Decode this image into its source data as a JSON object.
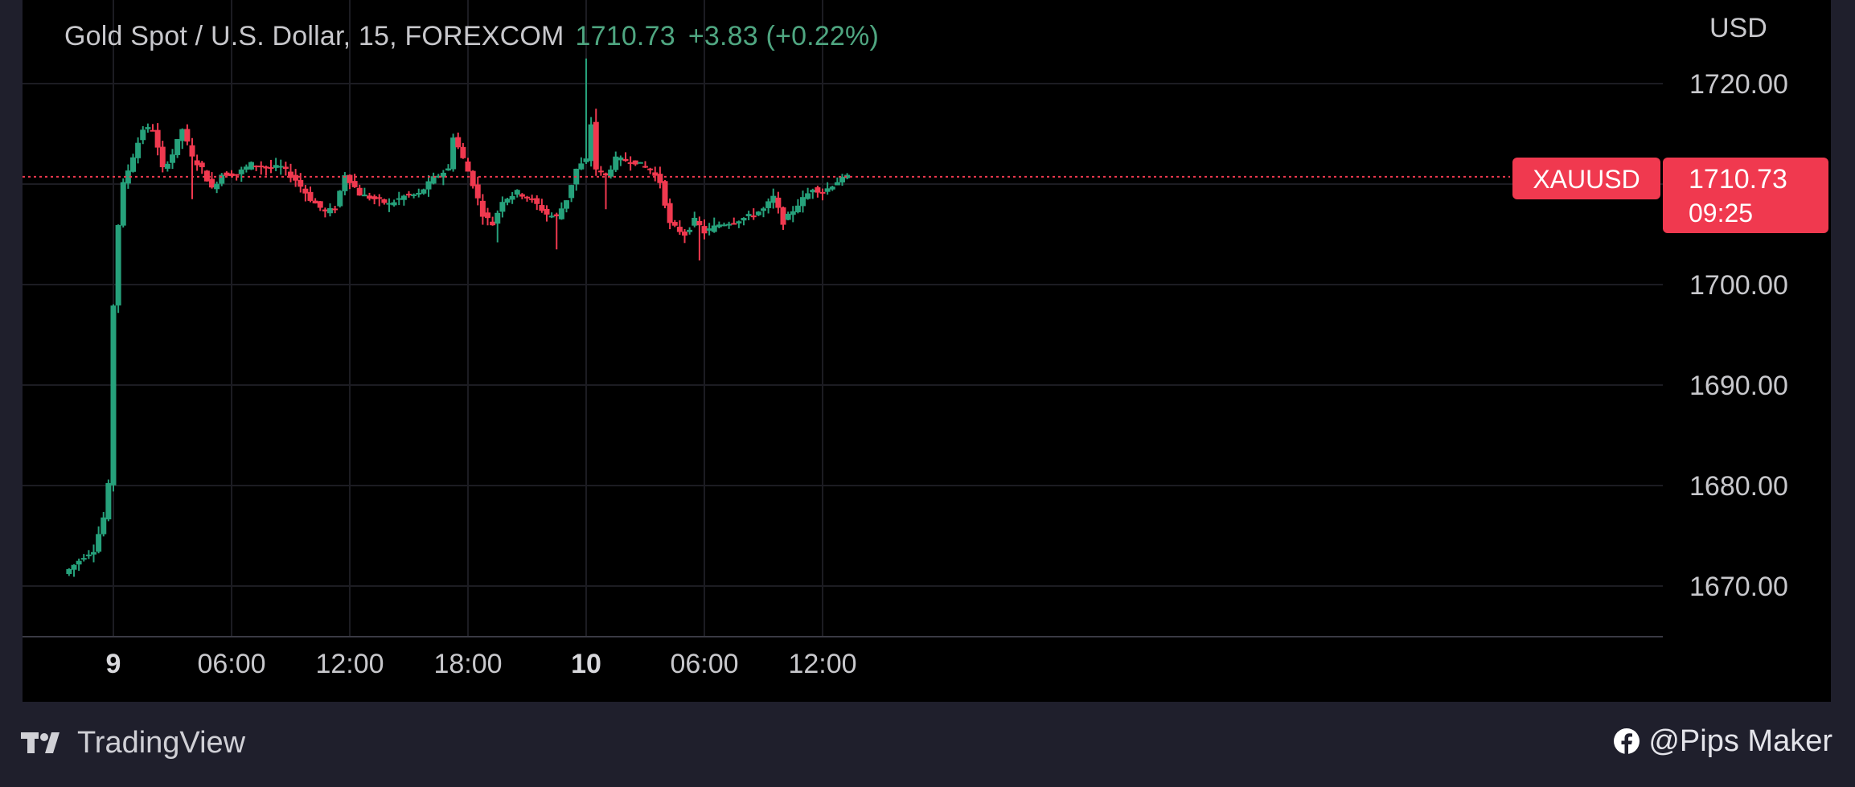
{
  "header": {
    "title": "Gold Spot / U.S. Dollar, 15, FOREXCOM",
    "price": "1710.73",
    "change": "+3.83 (+0.22%)",
    "currency": "USD"
  },
  "symbol_badge": {
    "label": "XAUUSD",
    "price": "1710.73",
    "countdown": "09:25"
  },
  "footer": {
    "brand": "TradingView",
    "social_handle": "@Pips Maker"
  },
  "colors": {
    "background": "#000000",
    "frame": "#1f1f2c",
    "up": "#26a17b",
    "down": "#f0394f",
    "grid": "#1c1c22",
    "text": "#c8c8cc"
  },
  "icons": {
    "brand": "tradingview-logo-icon",
    "social": "facebook-icon"
  },
  "chart_data": {
    "type": "candlestick",
    "timeframe_minutes": 15,
    "y_ticks": [
      1720,
      1710,
      1700,
      1690,
      1680,
      1670
    ],
    "y_tick_labels": [
      "1720.00",
      "1710.00",
      "1700.00",
      "1690.00",
      "1680.00",
      "1670.00"
    ],
    "ylim": [
      1665,
      1725
    ],
    "x_ticks": [
      {
        "label": "9",
        "at": "09 00:00",
        "bold": true
      },
      {
        "label": "06:00",
        "at": "09 06:00",
        "bold": false
      },
      {
        "label": "12:00",
        "at": "09 12:00",
        "bold": false
      },
      {
        "label": "18:00",
        "at": "09 18:00",
        "bold": false
      },
      {
        "label": "10",
        "at": "10 00:00",
        "bold": true
      },
      {
        "label": "06:00",
        "at": "10 06:00",
        "bold": false
      },
      {
        "label": "12:00",
        "at": "10 12:00",
        "bold": false
      }
    ],
    "last_price": 1710.73,
    "path": [
      [
        "08 21:45",
        1671.2
      ],
      [
        "08 22:45",
        1673.0
      ],
      [
        "08 23:15",
        1673.6
      ],
      [
        "08 23:45",
        1676.8
      ],
      [
        "09 00:00",
        1680.0
      ],
      [
        "09 00:15",
        1698.0
      ],
      [
        "09 00:30",
        1706.0
      ],
      [
        "09 00:45",
        1710.0
      ],
      [
        "09 01:15",
        1712.8
      ],
      [
        "09 01:45",
        1715.5
      ],
      [
        "09 02:15",
        1715.5
      ],
      [
        "09 02:45",
        1711.5
      ],
      [
        "09 03:15",
        1713.0
      ],
      [
        "09 03:45",
        1715.5
      ],
      [
        "09 04:15",
        1712.6
      ],
      [
        "09 04:45",
        1711.5
      ],
      [
        "09 05:15",
        1709.5
      ],
      [
        "09 05:45",
        1711.0
      ],
      [
        "09 06:30",
        1711.0
      ],
      [
        "09 07:15",
        1712.0
      ],
      [
        "09 08:00",
        1711.6
      ],
      [
        "09 08:45",
        1711.7
      ],
      [
        "09 09:30",
        1710.4
      ],
      [
        "09 10:15",
        1708.5
      ],
      [
        "09 11:00",
        1707.2
      ],
      [
        "09 11:30",
        1707.6
      ],
      [
        "09 12:00",
        1711.0
      ],
      [
        "09 12:45",
        1709.0
      ],
      [
        "09 13:30",
        1708.5
      ],
      [
        "09 14:15",
        1708.0
      ],
      [
        "09 15:00",
        1708.8
      ],
      [
        "09 15:45",
        1709.0
      ],
      [
        "09 16:30",
        1710.6
      ],
      [
        "09 17:15",
        1711.5
      ],
      [
        "09 17:30",
        1714.8
      ],
      [
        "09 18:00",
        1712.5
      ],
      [
        "09 18:30",
        1710.0
      ],
      [
        "09 19:00",
        1707.0
      ],
      [
        "09 19:30",
        1706.0
      ],
      [
        "09 20:00",
        1708.4
      ],
      [
        "09 20:45",
        1709.2
      ],
      [
        "09 21:30",
        1708.4
      ],
      [
        "09 22:15",
        1707.0
      ],
      [
        "09 22:45",
        1706.7
      ],
      [
        "09 23:15",
        1708.5
      ],
      [
        "09 23:45",
        1711.5
      ],
      [
        "10 00:15",
        1712.4
      ],
      [
        "10 00:30",
        1716.0
      ],
      [
        "10 00:45",
        1711.5
      ],
      [
        "10 01:15",
        1710.8
      ],
      [
        "10 01:45",
        1712.5
      ],
      [
        "10 02:45",
        1712.2
      ],
      [
        "10 03:30",
        1711.4
      ],
      [
        "10 04:00",
        1710.2
      ],
      [
        "10 04:30",
        1706.0
      ],
      [
        "10 05:15",
        1705.0
      ],
      [
        "10 05:45",
        1706.4
      ],
      [
        "10 06:15",
        1705.2
      ],
      [
        "10 07:00",
        1706.0
      ],
      [
        "10 07:45",
        1706.3
      ],
      [
        "10 08:30",
        1706.8
      ],
      [
        "10 09:15",
        1707.5
      ],
      [
        "10 09:45",
        1708.7
      ],
      [
        "10 10:15",
        1706.2
      ],
      [
        "10 11:00",
        1708.0
      ],
      [
        "10 11:45",
        1709.6
      ],
      [
        "10 12:15",
        1709.2
      ],
      [
        "10 13:00",
        1710.3
      ],
      [
        "10 13:30",
        1710.73
      ]
    ],
    "spikes": [
      [
        "10 00:00",
        1722.5
      ],
      [
        "10 00:30",
        1717.5
      ],
      [
        "10 01:00",
        1707.5
      ],
      [
        "09 04:00",
        1708.5
      ],
      [
        "09 22:30",
        1703.5
      ],
      [
        "09 19:30",
        1704.2
      ],
      [
        "10 05:45",
        1702.4
      ],
      [
        "09 00:15",
        1697.3
      ]
    ]
  }
}
